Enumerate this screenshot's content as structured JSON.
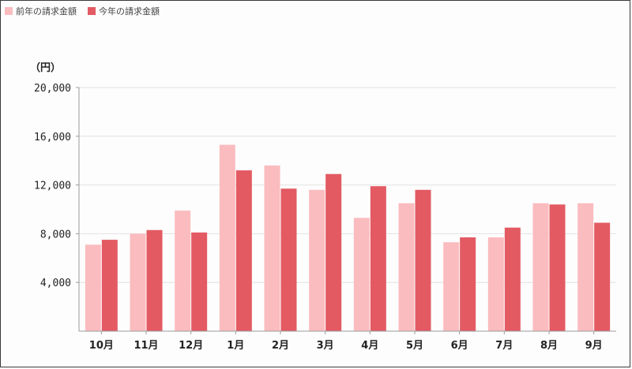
{
  "chart_data": {
    "type": "bar",
    "unit_label": "（円）",
    "categories": [
      "10月",
      "11月",
      "12月",
      "1月",
      "2月",
      "3月",
      "4月",
      "5月",
      "6月",
      "7月",
      "8月",
      "9月"
    ],
    "series": [
      {
        "name": "前年の請求金額",
        "color": "#fbbcbf",
        "values": [
          7100,
          8000,
          9900,
          15300,
          13600,
          11600,
          9300,
          10500,
          7300,
          7700,
          10500,
          10500
        ]
      },
      {
        "name": "今年の請求金額",
        "color": "#e35a63",
        "values": [
          7500,
          8300,
          8100,
          13200,
          11700,
          12900,
          11900,
          11600,
          7700,
          8500,
          10400,
          8900
        ]
      }
    ],
    "ylim": [
      0,
      20000
    ],
    "yticks": [
      4000,
      8000,
      12000,
      16000,
      20000
    ],
    "ytick_labels": [
      "4,000",
      "8,000",
      "12,000",
      "16,000",
      "20,000"
    ],
    "grid": true,
    "legend_position": "top-left"
  }
}
